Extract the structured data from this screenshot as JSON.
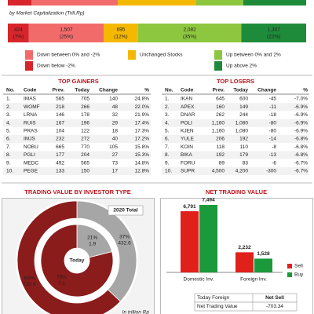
{
  "market_cap": {
    "subtitle": "by Market Capitalization (Trill.Rp)",
    "segments": [
      {
        "value": 424,
        "pct": 7,
        "pct_label": "(7%)",
        "color": "#d7252b"
      },
      {
        "value": 1507,
        "value_label": "1,507",
        "pct": 25,
        "pct_label": "(25%)",
        "color": "#f26b6b"
      },
      {
        "value": 695,
        "pct": 12,
        "pct_label": "(12%)",
        "color": "#f5b800"
      },
      {
        "value": 2082,
        "value_label": "2,082",
        "pct": 35,
        "pct_label": "(35%)",
        "color": "#8dc63f"
      },
      {
        "value": 1307,
        "value_label": "1,307",
        "pct": 22,
        "pct_label": "(22%)",
        "color": "#1e8b3a"
      }
    ],
    "legend": [
      {
        "label": "Down between 0% and -2%",
        "color": "#f26b6b"
      },
      {
        "label": "Down below -2%",
        "color": "#d7252b"
      },
      {
        "label": "Unchanged Stocks",
        "color": "#f5b800"
      },
      {
        "label": "Up between 0% and 2%",
        "color": "#8dc63f"
      },
      {
        "label": "Up above 2%",
        "color": "#1e8b3a"
      }
    ]
  },
  "gainers": {
    "title": "TOP GAINERS",
    "columns": [
      "No.",
      "Code",
      "Prev.",
      "Today",
      "Change",
      "%"
    ],
    "rows": [
      [
        "1.",
        "IMAS",
        "565",
        "705",
        "140",
        "24.8%"
      ],
      [
        "2.",
        "WOMF",
        "218",
        "266",
        "48",
        "22.0%"
      ],
      [
        "3.",
        "LRNA",
        "146",
        "178",
        "32",
        "21.9%"
      ],
      [
        "4.",
        "RUIS",
        "167",
        "196",
        "29",
        "17.4%"
      ],
      [
        "5.",
        "PRAS",
        "104",
        "122",
        "18",
        "17.3%"
      ],
      [
        "6.",
        "IMJS",
        "232",
        "272",
        "40",
        "17.2%"
      ],
      [
        "7.",
        "NOBU",
        "665",
        "770",
        "105",
        "15.8%"
      ],
      [
        "8.",
        "PGLI",
        "177",
        "204",
        "27",
        "15.3%"
      ],
      [
        "9.",
        "MEDC",
        "492",
        "565",
        "73",
        "14.8%"
      ],
      [
        "10.",
        "PEGE",
        "133",
        "150",
        "17",
        "12.8%"
      ]
    ]
  },
  "losers": {
    "title": "TOP LOSERS",
    "columns": [
      "No.",
      "Code",
      "Prev.",
      "Today",
      "Change",
      "%"
    ],
    "rows": [
      [
        "1.",
        "IKAN",
        "645",
        "600",
        "-45",
        "-7.0%"
      ],
      [
        "2.",
        "APEX",
        "160",
        "149",
        "-11",
        "-6.9%"
      ],
      [
        "3.",
        "DNAR",
        "262",
        "244",
        "-18",
        "-6.9%"
      ],
      [
        "4.",
        "POLI",
        "1,160",
        "1,080",
        "-80",
        "-6.9%"
      ],
      [
        "5.",
        "KJEN",
        "1,160",
        "1,080",
        "-80",
        "-6.9%"
      ],
      [
        "6.",
        "YULE",
        "206",
        "192",
        "-14",
        "-6.8%"
      ],
      [
        "7.",
        "KOIN",
        "118",
        "110",
        "-8",
        "-6.8%"
      ],
      [
        "8.",
        "BIKA",
        "192",
        "179",
        "-13",
        "-6.8%"
      ],
      [
        "9.",
        "FORU",
        "89",
        "83",
        "-6",
        "-6.7%"
      ],
      [
        "10.",
        "SUPR",
        "4,500",
        "4,200",
        "-300",
        "-6.7%"
      ]
    ]
  },
  "investor": {
    "title": "TRADING VALUE BY INVESTOR TYPE",
    "outer_label": "2020 Total",
    "inner_label": "Today",
    "note": "In trillion Rp",
    "outer": [
      {
        "pct": 37,
        "pct_label": "37%",
        "value": 432.6,
        "color": "#a6a6a6"
      },
      {
        "pct": 63,
        "pct_label": "63%",
        "value": 730.9,
        "color": "#8b1c1c"
      }
    ],
    "inner": [
      {
        "pct": 21,
        "pct_label": "21%",
        "value": 1.9,
        "color": "#a6a6a6"
      },
      {
        "pct": 79,
        "pct_label": "79%",
        "value": 7.1,
        "color": "#8b1c1c"
      }
    ]
  },
  "net": {
    "title": "NET TRADING VALUE",
    "categories": [
      "Domestic Inv.",
      "Foreign Inv."
    ],
    "series": [
      {
        "name": "Sell",
        "color": "#e0201b",
        "values": [
          6791,
          2232
        ],
        "value_labels": [
          "6,791",
          "2,232"
        ]
      },
      {
        "name": "Buy",
        "color": "#1a9a3a",
        "values": [
          7494,
          1528
        ],
        "value_labels": [
          "7,494",
          "1,528"
        ]
      }
    ],
    "table": [
      [
        "Today Foreign",
        "Net Sell"
      ],
      [
        "Net Trading Value",
        "-703.34"
      ]
    ]
  }
}
